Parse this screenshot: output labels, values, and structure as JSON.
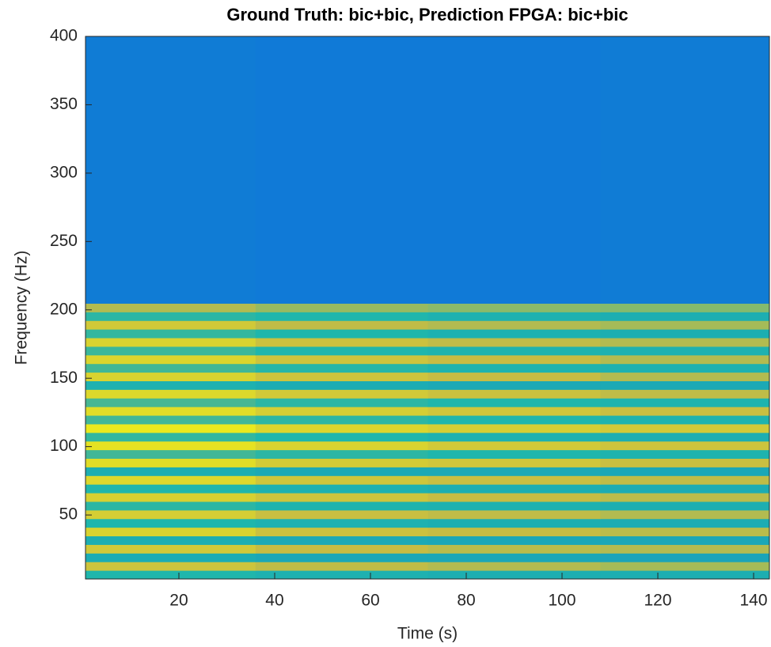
{
  "chart_data": {
    "type": "heatmap",
    "title": "Ground Truth: bic+bic, Prediction FPGA: bic+bic",
    "x_label": "Time (s)",
    "y_label": "Frequency (Hz)",
    "x": [
      0.5,
      36,
      72,
      108,
      143.3
    ],
    "y": [
      3.2,
      9.5,
      15.8,
      22.1,
      28.4,
      34.7,
      41.0,
      47.3,
      53.6,
      59.9,
      66.2,
      72.5,
      78.8,
      85.1,
      91.4,
      97.7,
      104.0,
      110.3,
      116.6,
      122.9,
      129.2,
      135.5,
      141.8,
      148.1,
      154.4,
      160.7,
      167.0,
      173.3,
      179.6,
      185.9,
      192.2,
      198.5,
      204.8,
      400
    ],
    "z": [
      [
        0.5,
        0.48,
        0.47,
        0.47
      ],
      [
        0.78,
        0.74,
        0.72,
        0.7
      ],
      [
        0.46,
        0.44,
        0.44,
        0.43
      ],
      [
        0.8,
        0.75,
        0.73,
        0.72
      ],
      [
        0.47,
        0.45,
        0.44,
        0.44
      ],
      [
        0.84,
        0.77,
        0.75,
        0.73
      ],
      [
        0.5,
        0.48,
        0.47,
        0.46
      ],
      [
        0.82,
        0.76,
        0.74,
        0.72
      ],
      [
        0.52,
        0.49,
        0.48,
        0.47
      ],
      [
        0.83,
        0.78,
        0.75,
        0.73
      ],
      [
        0.5,
        0.48,
        0.47,
        0.46
      ],
      [
        0.86,
        0.79,
        0.76,
        0.74
      ],
      [
        0.47,
        0.45,
        0.45,
        0.44
      ],
      [
        0.88,
        0.81,
        0.79,
        0.76
      ],
      [
        0.55,
        0.52,
        0.5,
        0.49
      ],
      [
        0.9,
        0.84,
        0.8,
        0.78
      ],
      [
        0.53,
        0.5,
        0.48,
        0.47
      ],
      [
        0.93,
        0.85,
        0.82,
        0.8
      ],
      [
        0.55,
        0.52,
        0.5,
        0.49
      ],
      [
        0.88,
        0.82,
        0.79,
        0.76
      ],
      [
        0.56,
        0.52,
        0.5,
        0.49
      ],
      [
        0.86,
        0.8,
        0.77,
        0.74
      ],
      [
        0.48,
        0.46,
        0.45,
        0.45
      ],
      [
        0.84,
        0.78,
        0.75,
        0.72
      ],
      [
        0.55,
        0.51,
        0.49,
        0.48
      ],
      [
        0.85,
        0.78,
        0.75,
        0.72
      ],
      [
        0.54,
        0.5,
        0.49,
        0.48
      ],
      [
        0.84,
        0.77,
        0.74,
        0.72
      ],
      [
        0.53,
        0.5,
        0.48,
        0.47
      ],
      [
        0.8,
        0.74,
        0.72,
        0.7
      ],
      [
        0.52,
        0.5,
        0.48,
        0.47
      ],
      [
        0.72,
        0.68,
        0.66,
        0.65
      ],
      [
        0.27,
        0.26,
        0.26,
        0.27
      ]
    ],
    "colormap": [
      "#352a87",
      "#0f77d9",
      "#1fb6ac",
      "#c7bc43",
      "#f9fb0e"
    ],
    "clim": [
      0,
      1
    ],
    "xlim": [
      0.5,
      143.3
    ],
    "ylim": [
      3.2,
      400
    ],
    "xticks": [
      20,
      40,
      60,
      80,
      100,
      120,
      140
    ],
    "yticks": [
      50,
      100,
      150,
      200,
      250,
      300,
      350,
      400
    ]
  }
}
